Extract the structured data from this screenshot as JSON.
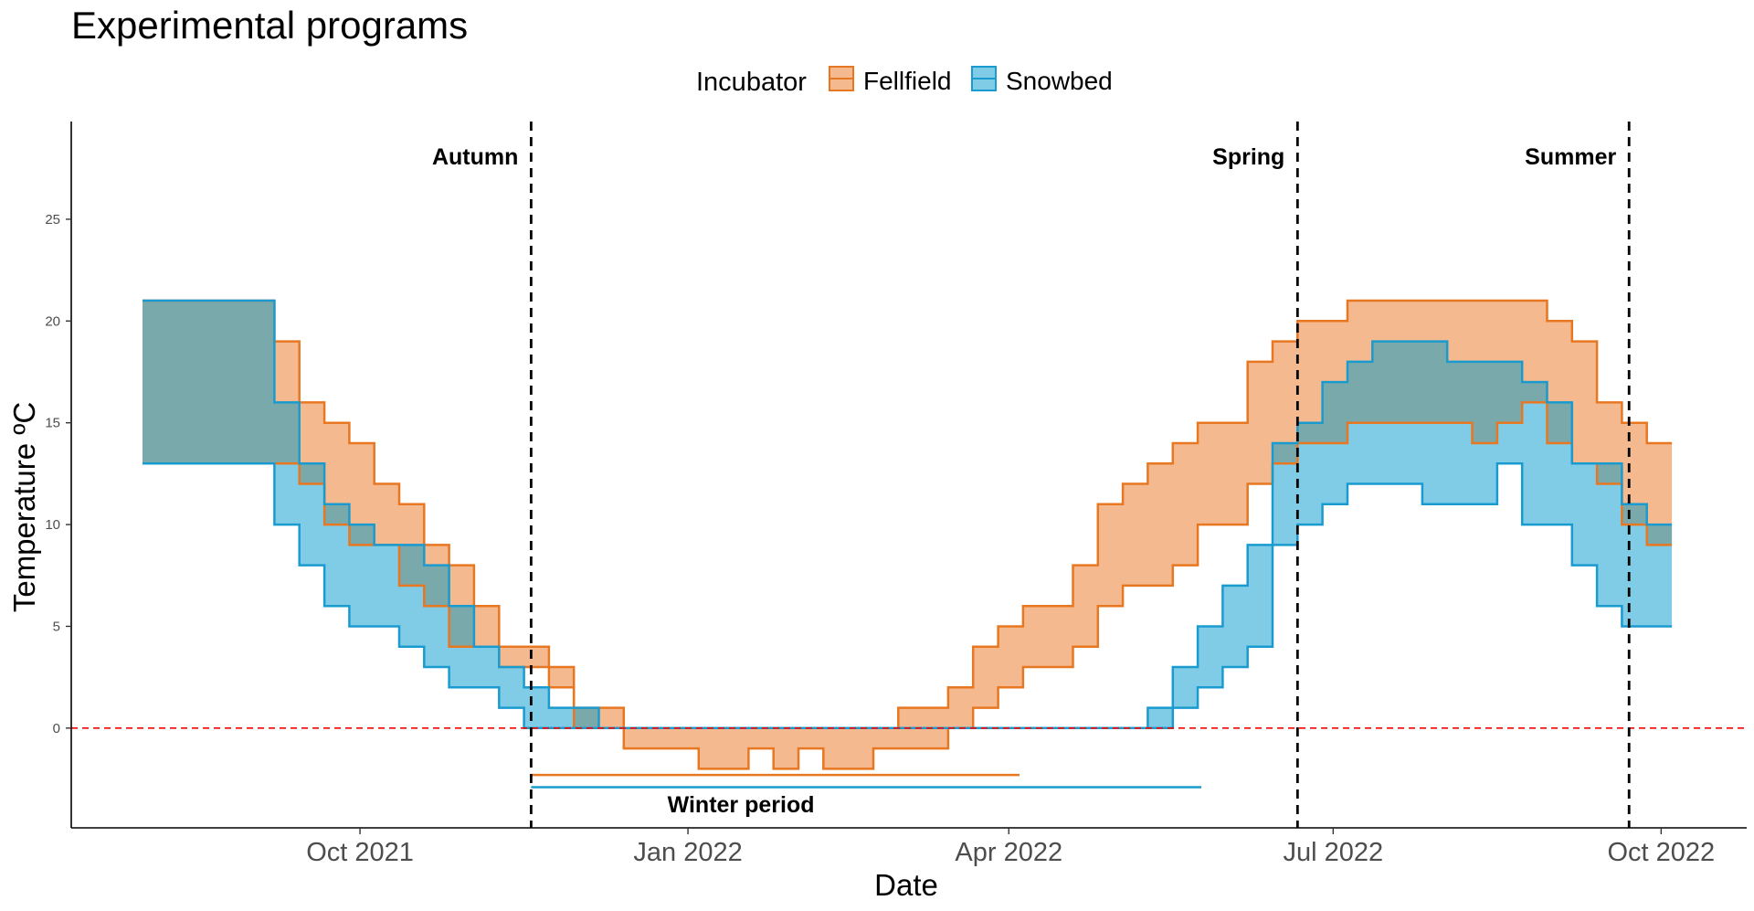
{
  "chart_data": {
    "type": "area",
    "title": "Experimental programs",
    "xlabel": "Date",
    "ylabel": "Temperature ºC",
    "x_ticks": [
      "Oct 2021",
      "Jan 2022",
      "Apr 2022",
      "Jul 2022",
      "Oct 2022"
    ],
    "x_tick_dates": [
      "2021-10-01",
      "2022-01-01",
      "2022-04-01",
      "2022-07-01",
      "2022-10-01"
    ],
    "y_ticks": [
      0,
      5,
      10,
      15,
      20,
      25
    ],
    "xlim": [
      "2021-07-12",
      "2022-10-25"
    ],
    "ylim": [
      -4.9,
      29.8
    ],
    "grid": false,
    "legend": {
      "title": "Incubator",
      "position": "top",
      "entries": [
        "Fellfield",
        "Snowbed"
      ]
    },
    "colors": {
      "Fellfield_line": "#e87722",
      "Fellfield_fill": "#f5b98f",
      "Snowbed_line": "#1a9bd0",
      "Snowbed_fill": "#80cce6",
      "overlap_fill": "#79a9ab",
      "zero_line": "#ff0000",
      "season_line": "#000000"
    },
    "reference_lines": {
      "horizontal": [
        {
          "y": 0,
          "style": "dashed",
          "color": "#ff0000"
        }
      ],
      "vertical": [
        {
          "x": "2021-11-18",
          "label": "Autumn"
        },
        {
          "x": "2022-06-21",
          "label": "Spring"
        },
        {
          "x": "2022-09-22",
          "label": "Summer"
        }
      ]
    },
    "annotations": [
      {
        "text": "Winter period",
        "x": "2022-01-01",
        "y": -3.6
      }
    ],
    "winter_periods": [
      {
        "series": "Fellfield",
        "start": "2021-11-18",
        "end": "2022-04-04",
        "y": -2.3
      },
      {
        "series": "Snowbed",
        "start": "2021-11-18",
        "end": "2022-05-25",
        "y": -2.9
      }
    ],
    "series": [
      {
        "name": "Fellfield",
        "upper": [
          {
            "x": "2021-08-01",
            "y": 21
          },
          {
            "x": "2021-09-07",
            "y": 19
          },
          {
            "x": "2021-09-14",
            "y": 16
          },
          {
            "x": "2021-09-21",
            "y": 15
          },
          {
            "x": "2021-09-28",
            "y": 14
          },
          {
            "x": "2021-10-05",
            "y": 12
          },
          {
            "x": "2021-10-12",
            "y": 11
          },
          {
            "x": "2021-10-19",
            "y": 9
          },
          {
            "x": "2021-10-26",
            "y": 8
          },
          {
            "x": "2021-11-02",
            "y": 6
          },
          {
            "x": "2021-11-09",
            "y": 4
          },
          {
            "x": "2021-11-23",
            "y": 3
          },
          {
            "x": "2021-11-30",
            "y": 1
          },
          {
            "x": "2021-12-14",
            "y": 0
          },
          {
            "x": "2022-03-01",
            "y": 1
          },
          {
            "x": "2022-03-15",
            "y": 2
          },
          {
            "x": "2022-03-22",
            "y": 4
          },
          {
            "x": "2022-03-29",
            "y": 5
          },
          {
            "x": "2022-04-05",
            "y": 6
          },
          {
            "x": "2022-04-19",
            "y": 8
          },
          {
            "x": "2022-04-26",
            "y": 11
          },
          {
            "x": "2022-05-03",
            "y": 12
          },
          {
            "x": "2022-05-10",
            "y": 13
          },
          {
            "x": "2022-05-17",
            "y": 14
          },
          {
            "x": "2022-05-24",
            "y": 15
          },
          {
            "x": "2022-06-07",
            "y": 18
          },
          {
            "x": "2022-06-14",
            "y": 19
          },
          {
            "x": "2022-06-21",
            "y": 20
          },
          {
            "x": "2022-07-05",
            "y": 21
          },
          {
            "x": "2022-08-30",
            "y": 20
          },
          {
            "x": "2022-09-06",
            "y": 19
          },
          {
            "x": "2022-09-13",
            "y": 16
          },
          {
            "x": "2022-09-20",
            "y": 15
          },
          {
            "x": "2022-09-27",
            "y": 14
          },
          {
            "x": "2022-10-04",
            "y": 14
          }
        ],
        "lower": [
          {
            "x": "2021-08-01",
            "y": 13
          },
          {
            "x": "2021-09-07",
            "y": 13
          },
          {
            "x": "2021-09-14",
            "y": 12
          },
          {
            "x": "2021-09-21",
            "y": 10
          },
          {
            "x": "2021-09-28",
            "y": 9
          },
          {
            "x": "2021-10-05",
            "y": 9
          },
          {
            "x": "2021-10-12",
            "y": 7
          },
          {
            "x": "2021-10-19",
            "y": 6
          },
          {
            "x": "2021-10-26",
            "y": 4
          },
          {
            "x": "2021-11-02",
            "y": 4
          },
          {
            "x": "2021-11-09",
            "y": 3
          },
          {
            "x": "2021-11-23",
            "y": 2
          },
          {
            "x": "2021-11-30",
            "y": 0
          },
          {
            "x": "2021-12-14",
            "y": -1
          },
          {
            "x": "2021-12-28",
            "y": -1
          },
          {
            "x": "2022-01-04",
            "y": -2
          },
          {
            "x": "2022-01-18",
            "y": -1
          },
          {
            "x": "2022-01-25",
            "y": -2
          },
          {
            "x": "2022-02-01",
            "y": -1
          },
          {
            "x": "2022-02-08",
            "y": -2
          },
          {
            "x": "2022-02-22",
            "y": -1
          },
          {
            "x": "2022-03-15",
            "y": 0
          },
          {
            "x": "2022-03-22",
            "y": 1
          },
          {
            "x": "2022-03-29",
            "y": 2
          },
          {
            "x": "2022-04-05",
            "y": 3
          },
          {
            "x": "2022-04-19",
            "y": 4
          },
          {
            "x": "2022-04-26",
            "y": 6
          },
          {
            "x": "2022-05-03",
            "y": 7
          },
          {
            "x": "2022-05-10",
            "y": 7
          },
          {
            "x": "2022-05-17",
            "y": 8
          },
          {
            "x": "2022-05-24",
            "y": 10
          },
          {
            "x": "2022-06-07",
            "y": 12
          },
          {
            "x": "2022-06-14",
            "y": 13
          },
          {
            "x": "2022-06-21",
            "y": 14
          },
          {
            "x": "2022-07-05",
            "y": 15
          },
          {
            "x": "2022-08-09",
            "y": 14
          },
          {
            "x": "2022-08-16",
            "y": 15
          },
          {
            "x": "2022-08-23",
            "y": 16
          },
          {
            "x": "2022-08-30",
            "y": 14
          },
          {
            "x": "2022-09-06",
            "y": 13
          },
          {
            "x": "2022-09-13",
            "y": 12
          },
          {
            "x": "2022-09-20",
            "y": 10
          },
          {
            "x": "2022-09-27",
            "y": 9
          },
          {
            "x": "2022-10-04",
            "y": 9
          }
        ]
      },
      {
        "name": "Snowbed",
        "upper": [
          {
            "x": "2021-08-01",
            "y": 21
          },
          {
            "x": "2021-09-07",
            "y": 16
          },
          {
            "x": "2021-09-14",
            "y": 13
          },
          {
            "x": "2021-09-21",
            "y": 11
          },
          {
            "x": "2021-09-28",
            "y": 10
          },
          {
            "x": "2021-10-05",
            "y": 9
          },
          {
            "x": "2021-10-19",
            "y": 8
          },
          {
            "x": "2021-10-26",
            "y": 6
          },
          {
            "x": "2021-11-02",
            "y": 4
          },
          {
            "x": "2021-11-09",
            "y": 3
          },
          {
            "x": "2021-11-16",
            "y": 2
          },
          {
            "x": "2021-11-23",
            "y": 1
          },
          {
            "x": "2021-12-07",
            "y": 0
          },
          {
            "x": "2022-05-10",
            "y": 1
          },
          {
            "x": "2022-05-17",
            "y": 3
          },
          {
            "x": "2022-05-24",
            "y": 5
          },
          {
            "x": "2022-05-31",
            "y": 7
          },
          {
            "x": "2022-06-07",
            "y": 9
          },
          {
            "x": "2022-06-14",
            "y": 14
          },
          {
            "x": "2022-06-21",
            "y": 15
          },
          {
            "x": "2022-06-28",
            "y": 17
          },
          {
            "x": "2022-07-05",
            "y": 18
          },
          {
            "x": "2022-07-12",
            "y": 19
          },
          {
            "x": "2022-08-02",
            "y": 18
          },
          {
            "x": "2022-08-23",
            "y": 17
          },
          {
            "x": "2022-08-30",
            "y": 16
          },
          {
            "x": "2022-09-06",
            "y": 13
          },
          {
            "x": "2022-09-20",
            "y": 11
          },
          {
            "x": "2022-09-27",
            "y": 10
          },
          {
            "x": "2022-10-04",
            "y": 10
          }
        ],
        "lower": [
          {
            "x": "2021-08-01",
            "y": 13
          },
          {
            "x": "2021-09-07",
            "y": 10
          },
          {
            "x": "2021-09-14",
            "y": 8
          },
          {
            "x": "2021-09-21",
            "y": 6
          },
          {
            "x": "2021-09-28",
            "y": 5
          },
          {
            "x": "2021-10-12",
            "y": 4
          },
          {
            "x": "2021-10-19",
            "y": 3
          },
          {
            "x": "2021-10-26",
            "y": 2
          },
          {
            "x": "2021-11-09",
            "y": 1
          },
          {
            "x": "2021-11-16",
            "y": 0
          },
          {
            "x": "2022-05-17",
            "y": 1
          },
          {
            "x": "2022-05-24",
            "y": 2
          },
          {
            "x": "2022-05-31",
            "y": 3
          },
          {
            "x": "2022-06-07",
            "y": 4
          },
          {
            "x": "2022-06-14",
            "y": 9
          },
          {
            "x": "2022-06-21",
            "y": 10
          },
          {
            "x": "2022-06-28",
            "y": 11
          },
          {
            "x": "2022-07-05",
            "y": 12
          },
          {
            "x": "2022-07-19",
            "y": 12
          },
          {
            "x": "2022-07-26",
            "y": 11
          },
          {
            "x": "2022-08-16",
            "y": 13
          },
          {
            "x": "2022-08-23",
            "y": 10
          },
          {
            "x": "2022-09-06",
            "y": 8
          },
          {
            "x": "2022-09-13",
            "y": 6
          },
          {
            "x": "2022-09-20",
            "y": 5
          },
          {
            "x": "2022-10-04",
            "y": 5
          }
        ]
      }
    ]
  }
}
